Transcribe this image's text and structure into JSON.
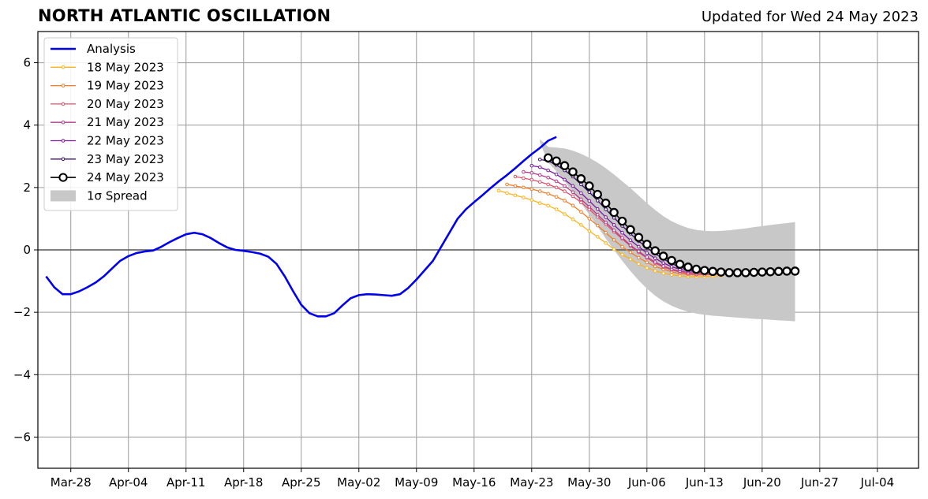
{
  "header": {
    "title": "NORTH ATLANTIC OSCILLATION",
    "updated": "Updated for Wed 24 May 2023"
  },
  "colors": {
    "analysis": "#0000ee",
    "spread": "#c8c8c8",
    "grid": "#9a9a9a",
    "zero_line": "#555555",
    "forecast_24": "#000000"
  },
  "chart_data": {
    "type": "line",
    "title": "NORTH ATLANTIC OSCILLATION",
    "xlabel": "",
    "ylabel": "",
    "xlim": [
      "2023-03-24",
      "2023-07-09"
    ],
    "ylim": [
      -7,
      7
    ],
    "yticks": [
      -6,
      -4,
      -2,
      0,
      2,
      4,
      6
    ],
    "ytick_labels": [
      "−6",
      "−4",
      "−2",
      "0",
      "2",
      "4",
      "6"
    ],
    "xticks": [
      "2023-03-28",
      "2023-04-04",
      "2023-04-11",
      "2023-04-18",
      "2023-04-25",
      "2023-05-02",
      "2023-05-09",
      "2023-05-16",
      "2023-05-23",
      "2023-05-30",
      "2023-06-06",
      "2023-06-13",
      "2023-06-20",
      "2023-06-27",
      "2023-07-04"
    ],
    "xtick_labels": [
      "Mar-28",
      "Apr-04",
      "Apr-11",
      "Apr-18",
      "Apr-25",
      "May-02",
      "May-09",
      "May-16",
      "May-23",
      "May-30",
      "Jun-06",
      "Jun-13",
      "Jun-20",
      "Jun-27",
      "Jul-04"
    ],
    "grid": true,
    "legend_position": "top-left",
    "legend": [
      "Analysis",
      "18 May 2023",
      "19 May 2023",
      "20 May 2023",
      "21 May 2023",
      "22 May 2023",
      "23 May 2023",
      "24 May 2023",
      "1σ Spread"
    ],
    "series": [
      {
        "name": "Analysis",
        "color": "#0000ee",
        "kind": "analysis",
        "start": "2023-03-25",
        "values": [
          -0.85,
          -1.2,
          -1.42,
          -1.42,
          -1.33,
          -1.2,
          -1.05,
          -0.85,
          -0.6,
          -0.35,
          -0.2,
          -0.1,
          -0.05,
          -0.02,
          0.1,
          0.25,
          0.38,
          0.5,
          0.55,
          0.5,
          0.38,
          0.22,
          0.08,
          0.0,
          -0.03,
          -0.07,
          -0.12,
          -0.22,
          -0.45,
          -0.85,
          -1.32,
          -1.76,
          -2.03,
          -2.13,
          -2.13,
          -2.03,
          -1.78,
          -1.55,
          -1.45,
          -1.42,
          -1.43,
          -1.45,
          -1.47,
          -1.42,
          -1.22,
          -0.95,
          -0.65,
          -0.35,
          0.1,
          0.55,
          1.0,
          1.3,
          1.53,
          1.75,
          1.98,
          2.2,
          2.4,
          2.62,
          2.85,
          3.07,
          3.27,
          3.5,
          3.62
        ]
      },
      {
        "name": "18 May 2023",
        "color": "#fbb41a",
        "kind": "forecast",
        "start": "2023-05-19",
        "values": [
          1.9,
          1.82,
          1.75,
          1.68,
          1.6,
          1.5,
          1.42,
          1.3,
          1.15,
          0.98,
          0.8,
          0.6,
          0.42,
          0.22,
          0.02,
          -0.15,
          -0.3,
          -0.45,
          -0.58,
          -0.67,
          -0.75,
          -0.8,
          -0.83,
          -0.85,
          -0.86,
          -0.86,
          -0.84,
          -0.82
        ]
      },
      {
        "name": "19 May 2023",
        "color": "#ef7d2a",
        "kind": "forecast",
        "start": "2023-05-20",
        "values": [
          2.1,
          2.05,
          2.0,
          1.95,
          1.88,
          1.8,
          1.7,
          1.58,
          1.42,
          1.22,
          1.0,
          0.78,
          0.55,
          0.32,
          0.1,
          -0.08,
          -0.25,
          -0.4,
          -0.53,
          -0.62,
          -0.7,
          -0.76,
          -0.79,
          -0.8,
          -0.8,
          -0.79,
          -0.77
        ]
      },
      {
        "name": "20 May 2023",
        "color": "#e0506a",
        "kind": "forecast",
        "start": "2023-05-21",
        "values": [
          2.35,
          2.3,
          2.25,
          2.18,
          2.1,
          2.0,
          1.88,
          1.72,
          1.52,
          1.3,
          1.06,
          0.82,
          0.58,
          0.35,
          0.12,
          -0.08,
          -0.26,
          -0.42,
          -0.55,
          -0.64,
          -0.71,
          -0.76,
          -0.78,
          -0.79,
          -0.78,
          -0.76
        ]
      },
      {
        "name": "21 May 2023",
        "color": "#b53a8a",
        "kind": "forecast",
        "start": "2023-05-22",
        "values": [
          2.5,
          2.47,
          2.4,
          2.32,
          2.2,
          2.05,
          1.85,
          1.62,
          1.38,
          1.13,
          0.88,
          0.63,
          0.39,
          0.15,
          -0.05,
          -0.23,
          -0.39,
          -0.52,
          -0.62,
          -0.68,
          -0.72,
          -0.74,
          -0.75,
          -0.74,
          -0.72
        ]
      },
      {
        "name": "22 May 2023",
        "color": "#7b1a9e",
        "kind": "forecast",
        "start": "2023-05-23",
        "values": [
          2.7,
          2.65,
          2.55,
          2.42,
          2.25,
          2.05,
          1.82,
          1.57,
          1.31,
          1.05,
          0.8,
          0.55,
          0.31,
          0.1,
          -0.1,
          -0.27,
          -0.42,
          -0.54,
          -0.62,
          -0.67,
          -0.7,
          -0.71,
          -0.71,
          -0.7
        ]
      },
      {
        "name": "23 May 2023",
        "color": "#3b0f6f",
        "kind": "forecast",
        "start": "2023-05-24",
        "values": [
          2.9,
          2.85,
          2.72,
          2.55,
          2.35,
          2.1,
          1.85,
          1.58,
          1.3,
          1.03,
          0.77,
          0.52,
          0.28,
          0.07,
          -0.12,
          -0.29,
          -0.44,
          -0.55,
          -0.63,
          -0.68,
          -0.7,
          -0.71,
          -0.7
        ]
      },
      {
        "name": "24 May 2023",
        "color": "#000000",
        "kind": "current",
        "start": "2023-05-25",
        "values": [
          2.95,
          2.85,
          2.7,
          2.5,
          2.28,
          2.05,
          1.78,
          1.5,
          1.2,
          0.92,
          0.65,
          0.4,
          0.18,
          -0.03,
          -0.2,
          -0.34,
          -0.46,
          -0.55,
          -0.62,
          -0.66,
          -0.69,
          -0.71,
          -0.73,
          -0.73,
          -0.73,
          -0.72,
          -0.71,
          -0.7,
          -0.69,
          -0.68,
          -0.68
        ]
      }
    ],
    "spread": {
      "name": "1σ Spread",
      "color": "#c8c8c8",
      "start": "2023-05-24",
      "upper": [
        3.55,
        3.3,
        3.28,
        3.25,
        3.18,
        3.08,
        2.95,
        2.8,
        2.62,
        2.42,
        2.2,
        1.98,
        1.74,
        1.5,
        1.28,
        1.08,
        0.92,
        0.8,
        0.7,
        0.64,
        0.61,
        0.6,
        0.61,
        0.63,
        0.66,
        0.69,
        0.73,
        0.76,
        0.8,
        0.83,
        0.86,
        0.89
      ],
      "lower": [
        3.45,
        2.8,
        2.52,
        2.2,
        1.85,
        1.5,
        1.12,
        0.75,
        0.36,
        0.0,
        -0.35,
        -0.68,
        -0.98,
        -1.24,
        -1.47,
        -1.65,
        -1.79,
        -1.9,
        -1.98,
        -2.04,
        -2.08,
        -2.11,
        -2.13,
        -2.15,
        -2.17,
        -2.19,
        -2.21,
        -2.22,
        -2.24,
        -2.26,
        -2.27,
        -2.29
      ]
    }
  }
}
